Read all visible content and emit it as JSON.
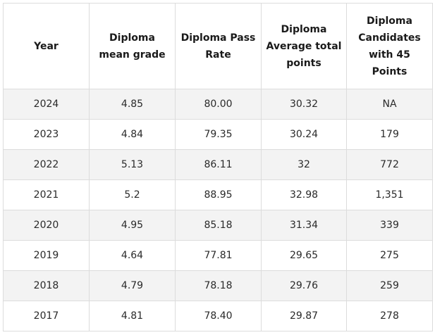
{
  "table": {
    "headers": [
      "Year",
      "Diploma mean grade",
      "Diploma Pass Rate",
      "Diploma Average total points",
      "Diploma Candidates with 45 Points"
    ],
    "rows": [
      [
        "2024",
        "4.85",
        "80.00",
        "30.32",
        "NA"
      ],
      [
        "2023",
        "4.84",
        "79.35",
        "30.24",
        "179"
      ],
      [
        "2022",
        "5.13",
        "86.11",
        "32",
        "772"
      ],
      [
        "2021",
        "5.2",
        "88.95",
        "32.98",
        "1,351"
      ],
      [
        "2020",
        "4.95",
        "85.18",
        "31.34",
        "339"
      ],
      [
        "2019",
        "4.64",
        "77.81",
        "29.65",
        "275"
      ],
      [
        "2018",
        "4.79",
        "78.18",
        "29.76",
        "259"
      ],
      [
        "2017",
        "4.81",
        "78.40",
        "29.87",
        "278"
      ]
    ]
  },
  "colors": {
    "border": "#dcdcdc",
    "stripe": "#f3f3f3",
    "text": "#1a1a1a"
  }
}
